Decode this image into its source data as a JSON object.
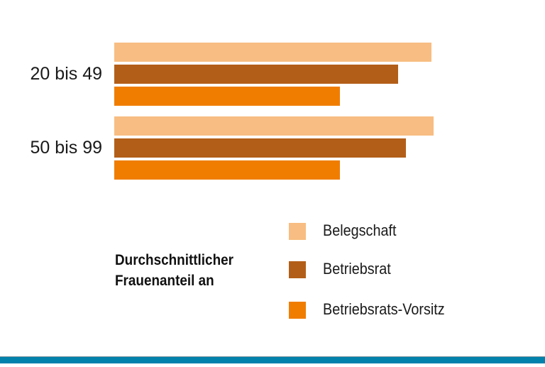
{
  "chart_data": {
    "type": "bar",
    "orientation": "horizontal",
    "title": "",
    "legend_title": [
      "Durchschnittlicher",
      "Frauenanteil an"
    ],
    "categories": [
      "20 bis 49",
      "50 bis 99"
    ],
    "series": [
      {
        "name": "Belegschaft",
        "values": [
          44.7,
          45.0
        ],
        "color": "#f8bd82"
      },
      {
        "name": "Betriebsrat",
        "values": [
          40.0,
          41.1
        ],
        "color": "#b35e18"
      },
      {
        "name": "Betriebsrats-Vorsitz",
        "values": [
          31.8,
          31.8
        ],
        "color": "#f07d00"
      }
    ],
    "xlim": [
      0,
      60
    ],
    "grid": false,
    "axis_visible": false,
    "legend_placement": "bottom-right"
  },
  "colors": {
    "bottom_bar": "#0082ad"
  }
}
